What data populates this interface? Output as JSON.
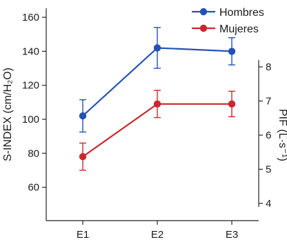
{
  "chart_data": {
    "type": "line",
    "categories": [
      "E1",
      "E2",
      "E3"
    ],
    "y_left": {
      "label": "S-INDEX (cm/H₂O)",
      "ylim": [
        50,
        165
      ],
      "ticks": [
        60,
        80,
        100,
        120,
        140,
        160
      ],
      "tick_labels": [
        "60",
        "80",
        "100",
        "120",
        "140",
        "160"
      ]
    },
    "y_right": {
      "label": "PIF (L·s⁻¹)",
      "ylim": [
        3.9,
        8.2
      ],
      "ticks": [
        4,
        5,
        6,
        7,
        8
      ],
      "tick_labels": [
        "4",
        "5",
        "6",
        "7",
        "8"
      ]
    },
    "series": [
      {
        "name": "Hombres",
        "color": "#2451b5",
        "values": [
          102,
          142,
          140
        ],
        "err": [
          9.5,
          12,
          8
        ]
      },
      {
        "name": "Mujeres",
        "color": "#c8282e",
        "values": [
          78,
          109,
          109
        ],
        "err": [
          8,
          8,
          7.5
        ]
      }
    ],
    "legend_position": "top-right",
    "grid": false
  }
}
